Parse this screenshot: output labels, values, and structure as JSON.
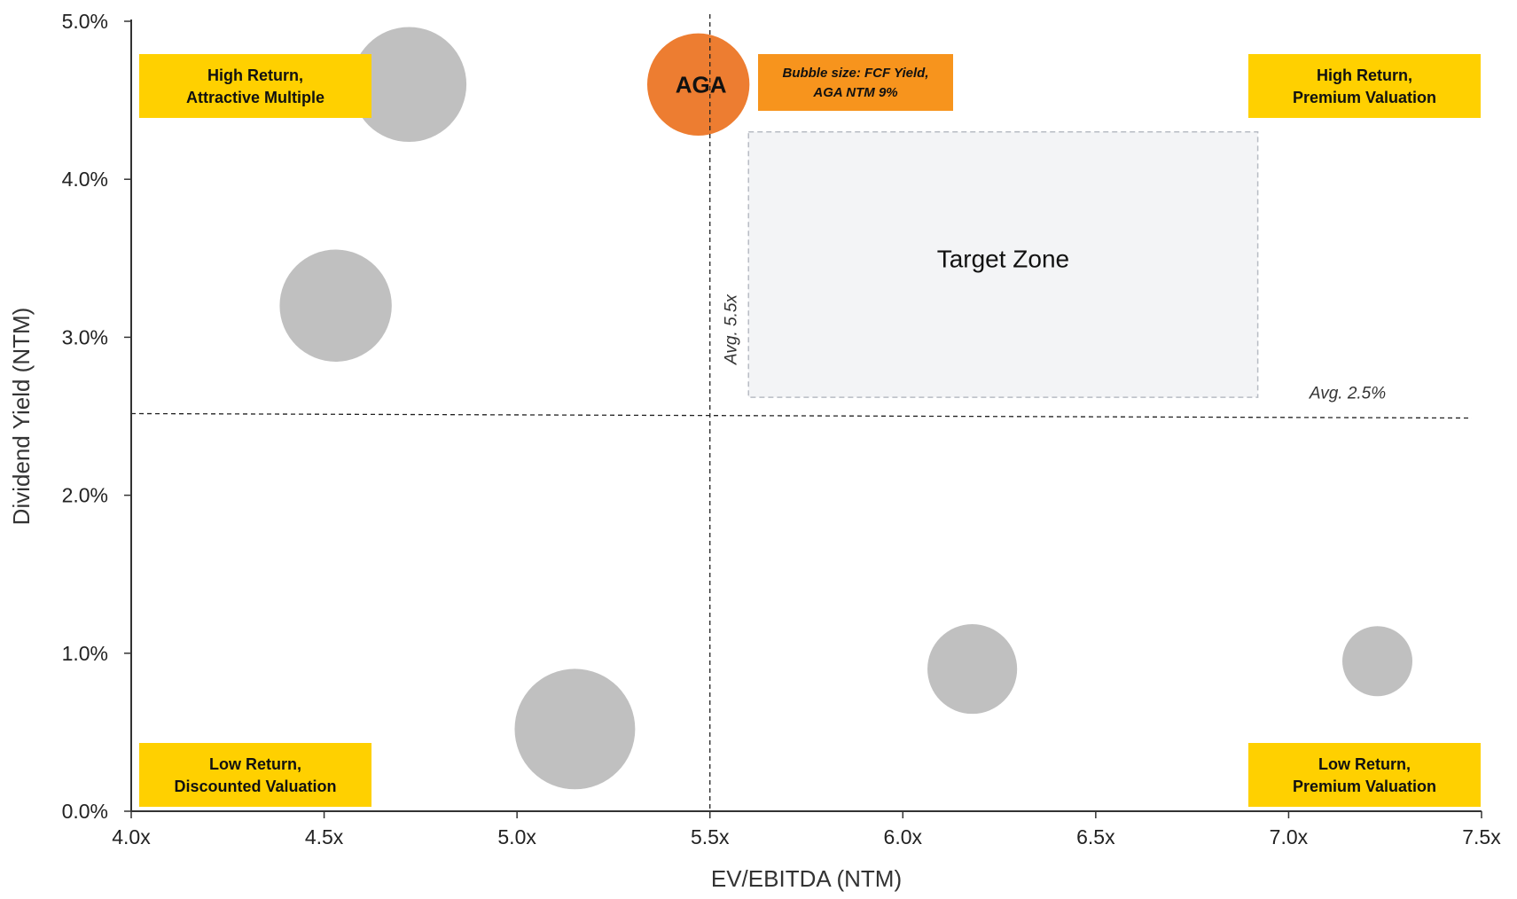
{
  "chart_data": {
    "type": "scatter",
    "xlabel": "EV/EBITDA (NTM)",
    "ylabel": "Dividend Yield (NTM)",
    "xlim": [
      4.0,
      7.5
    ],
    "ylim": [
      0.0,
      5.0
    ],
    "x_ticks": [
      4.0,
      4.5,
      5.0,
      5.5,
      6.0,
      6.5,
      7.0,
      7.5
    ],
    "x_tick_labels": [
      "4.0x",
      "4.5x",
      "5.0x",
      "5.5x",
      "6.0x",
      "6.5x",
      "7.0x",
      "7.5x"
    ],
    "y_ticks": [
      0,
      1,
      2,
      3,
      4,
      5
    ],
    "y_tick_labels": [
      "0.0%",
      "1.0%",
      "2.0%",
      "3.0%",
      "4.0%",
      "5.0%"
    ],
    "bubble_size_metric": "FCF Yield",
    "series": [
      {
        "color": "#C0C0C0",
        "points": [
          {
            "x": 4.72,
            "y": 4.6,
            "size": 8.2
          },
          {
            "x": 4.53,
            "y": 3.2,
            "size": 8.0
          },
          {
            "x": 5.15,
            "y": 0.52,
            "size": 8.6
          },
          {
            "x": 6.18,
            "y": 0.9,
            "size": 6.4
          },
          {
            "x": 7.23,
            "y": 0.95,
            "size": 5.0
          }
        ]
      },
      {
        "color": "#ED7D31",
        "points": [
          {
            "x": 5.47,
            "y": 4.6,
            "size": 7.3,
            "label": "AGA"
          }
        ]
      }
    ],
    "reference_lines": {
      "vertical": {
        "x": 5.5,
        "label": "Avg. 5.5x"
      },
      "horizontal": {
        "y": 2.5,
        "label": "Avg. 2.5%"
      }
    },
    "target_zone": {
      "x": [
        5.6,
        6.92
      ],
      "y": [
        2.62,
        4.3
      ],
      "label": "Target Zone"
    },
    "quadrant_labels": {
      "top_left": [
        "High Return,",
        "Attractive Multiple"
      ],
      "top_right": [
        "High Return,",
        "Premium Valuation"
      ],
      "bottom_left": [
        "Low Return,",
        "Discounted Valuation"
      ],
      "bottom_right": [
        "Low Return,",
        "Premium Valuation"
      ]
    },
    "note": [
      "Bubble size: FCF Yield,",
      "AGA NTM 9%"
    ],
    "colors": {
      "quadrant_label_bg": "#FFD000",
      "note_bg": "#F7941D",
      "target_zone_fill": "#F3F4F6",
      "target_zone_border": "#B8BCC4"
    }
  }
}
